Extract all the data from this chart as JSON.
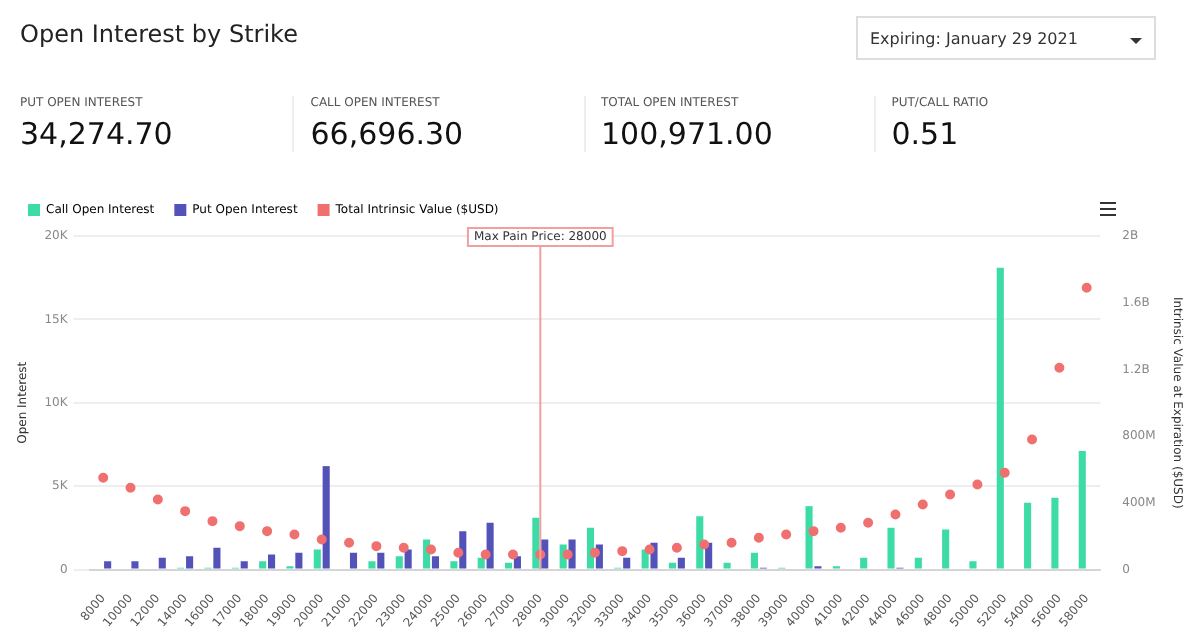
{
  "chart_data": {
    "type": "bar",
    "title": "Open Interest by Strike",
    "subtitle": "Expiring: January 29 2021",
    "ylabel": "Open Interest",
    "y2label": "Intrinsic Value at Expiration ($USD)",
    "annotations": [
      "PUT OPEN INTEREST",
      "34,274.70",
      "CALL OPEN INTEREST",
      "66,696.30",
      "TOTAL OPEN INTEREST",
      "100,971.00",
      "PUT/CALL RATIO",
      "0.51"
    ],
    "categories": [
      "8000",
      "10000",
      "12000",
      "14000",
      "16000",
      "17000",
      "18000",
      "19000",
      "20000",
      "21000",
      "22000",
      "23000",
      "24000",
      "25000",
      "26000",
      "27000",
      "28000",
      "30000",
      "32000",
      "33000",
      "34000",
      "35000",
      "36000",
      "37000",
      "38000",
      "39000",
      "40000",
      "41000",
      "42000",
      "44000",
      "46000",
      "48000",
      "50000",
      "52000",
      "54000",
      "56000",
      "58000"
    ],
    "series": [
      {
        "name": "Call Open Interest",
        "color": "#3ddca6",
        "values": [
          0,
          0,
          0,
          100,
          100,
          100,
          500,
          200,
          1200,
          0,
          500,
          800,
          1800,
          500,
          700,
          400,
          3100,
          1500,
          2500,
          100,
          1200,
          400,
          3200,
          400,
          1000,
          100,
          3800,
          200,
          700,
          2500,
          700,
          2400,
          500,
          18100,
          4000,
          4300,
          7100
        ]
      },
      {
        "name": "Put Open Interest",
        "color": "#5252b8",
        "values": [
          500,
          500,
          700,
          800,
          1300,
          500,
          900,
          1000,
          6200,
          1000,
          1000,
          1200,
          800,
          2300,
          2800,
          800,
          1800,
          1800,
          1500,
          700,
          1600,
          700,
          1600,
          0,
          100,
          0,
          200,
          0,
          0,
          100,
          0,
          0,
          0,
          0,
          0,
          0,
          0
        ]
      },
      {
        "name": "Total Intrinsic Value ($USD)",
        "type": "scatter",
        "axis": "y2",
        "color": "#f07070",
        "values": [
          550000000,
          490000000,
          420000000,
          350000000,
          290000000,
          260000000,
          230000000,
          210000000,
          180000000,
          160000000,
          140000000,
          130000000,
          120000000,
          100000000,
          90000000,
          90000000,
          90000000,
          90000000,
          100000000,
          110000000,
          120000000,
          130000000,
          150000000,
          160000000,
          190000000,
          210000000,
          230000000,
          250000000,
          280000000,
          330000000,
          390000000,
          450000000,
          510000000,
          580000000,
          780000000,
          1210000000,
          1690000000
        ]
      }
    ],
    "ylim": [
      0,
      20000
    ],
    "yticks": [
      {
        "value": 0,
        "label": "0"
      },
      {
        "value": 5000,
        "label": "5K"
      },
      {
        "value": 10000,
        "label": "10K"
      },
      {
        "value": 15000,
        "label": "15K"
      },
      {
        "value": 20000,
        "label": "20K"
      }
    ],
    "y2lim": [
      0,
      2000000000
    ],
    "y2ticks": [
      {
        "value": 0,
        "label": "0"
      },
      {
        "value": 400000000,
        "label": "400M"
      },
      {
        "value": 800000000,
        "label": "800M"
      },
      {
        "value": 1200000000,
        "label": "1.2B"
      },
      {
        "value": 1600000000,
        "label": "1.6B"
      },
      {
        "value": 2000000000,
        "label": "2B"
      }
    ],
    "ref_lines": [
      {
        "axis": "x",
        "value": "28000",
        "label": "Max Pain Price: 28000",
        "color": "#f0a0a0"
      }
    ],
    "grid": "y",
    "legend": "top left",
    "marker": "circle"
  }
}
